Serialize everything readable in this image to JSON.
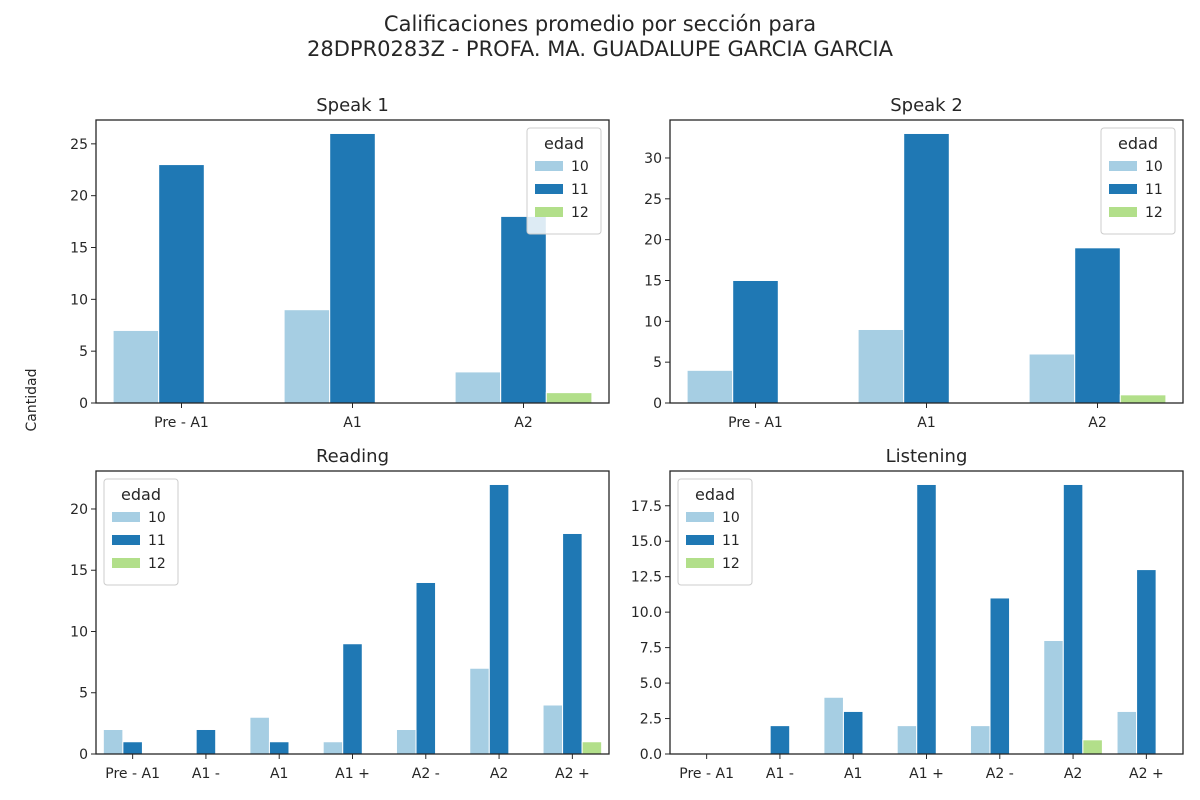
{
  "figure": {
    "title_line1": "Calificaciones promedio por sección para",
    "title_line2": "28DPR0283Z - PROFA. MA. GUADALUPE GARCIA GARCIA",
    "ylabel": "Cantidad"
  },
  "colors": {
    "10": "#a6cee3",
    "11": "#1f78b4",
    "12": "#b2df8a"
  },
  "chart_data": [
    {
      "type": "bar",
      "title": "Speak 1",
      "categories": [
        "Pre - A1",
        "A1",
        "A2"
      ],
      "series": [
        {
          "name": "10",
          "values": [
            7,
            9,
            3
          ]
        },
        {
          "name": "11",
          "values": [
            23,
            26,
            18
          ]
        },
        {
          "name": "12",
          "values": [
            0,
            0,
            1
          ]
        }
      ],
      "ylim": [
        0,
        27.3
      ],
      "yticks": [
        0,
        5,
        10,
        15,
        20,
        25
      ],
      "legend": {
        "title": "edad",
        "placement": "top-right"
      }
    },
    {
      "type": "bar",
      "title": "Speak 2",
      "categories": [
        "Pre - A1",
        "A1",
        "A2"
      ],
      "series": [
        {
          "name": "10",
          "values": [
            4,
            9,
            6
          ]
        },
        {
          "name": "11",
          "values": [
            15,
            33,
            19
          ]
        },
        {
          "name": "12",
          "values": [
            0,
            0,
            1
          ]
        }
      ],
      "ylim": [
        0,
        34.65
      ],
      "yticks": [
        0,
        5,
        10,
        15,
        20,
        25,
        30
      ],
      "legend": {
        "title": "edad",
        "placement": "top-right"
      }
    },
    {
      "type": "bar",
      "title": "Reading",
      "categories": [
        "Pre - A1",
        "A1 -",
        "A1",
        "A1 +",
        "A2 -",
        "A2",
        "A2 +"
      ],
      "series": [
        {
          "name": "10",
          "values": [
            2,
            0,
            3,
            1,
            2,
            7,
            4
          ]
        },
        {
          "name": "11",
          "values": [
            1,
            2,
            1,
            9,
            14,
            22,
            18
          ]
        },
        {
          "name": "12",
          "values": [
            0,
            0,
            0,
            0,
            0,
            0,
            1
          ]
        }
      ],
      "ylim": [
        0,
        23.1
      ],
      "yticks": [
        0,
        5,
        10,
        15,
        20
      ],
      "legend": {
        "title": "edad",
        "placement": "top-left"
      }
    },
    {
      "type": "bar",
      "title": "Listening",
      "categories": [
        "Pre - A1",
        "A1 -",
        "A1",
        "A1 +",
        "A2 -",
        "A2",
        "A2 +"
      ],
      "series": [
        {
          "name": "10",
          "values": [
            0,
            0,
            4,
            2,
            2,
            8,
            3
          ]
        },
        {
          "name": "11",
          "values": [
            0,
            2,
            3,
            19,
            11,
            19,
            13
          ]
        },
        {
          "name": "12",
          "values": [
            0,
            0,
            0,
            0,
            0,
            1,
            0
          ]
        }
      ],
      "ylim": [
        0,
        19.95
      ],
      "yticks": [
        0,
        2.5,
        5,
        7.5,
        10,
        12.5,
        15,
        17.5
      ],
      "ytick_labels": [
        "0.0",
        "2.5",
        "5.0",
        "7.5",
        "10.0",
        "12.5",
        "15.0",
        "17.5"
      ],
      "legend": {
        "title": "edad",
        "placement": "top-left"
      }
    }
  ]
}
